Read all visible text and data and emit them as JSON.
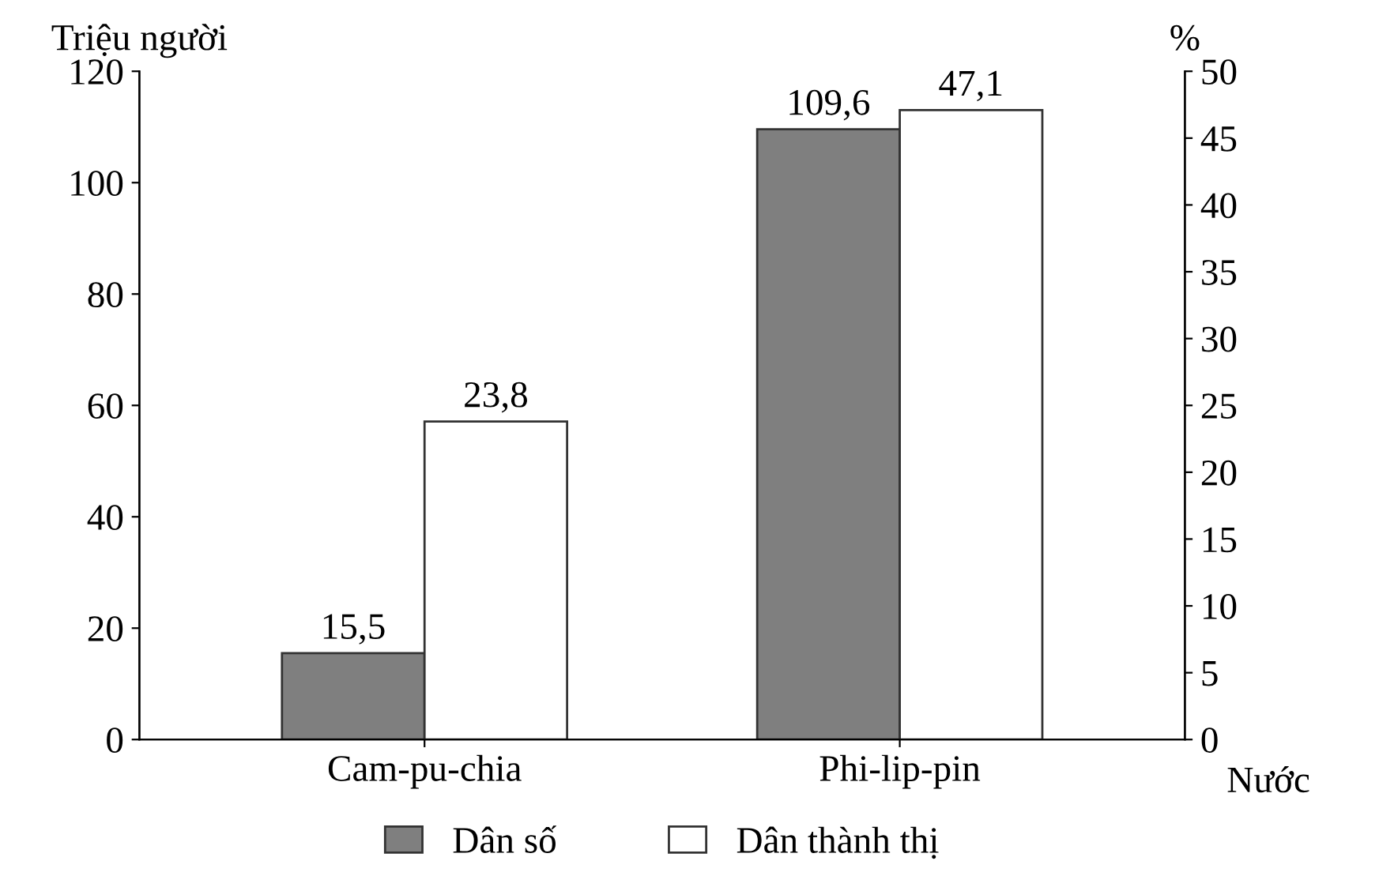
{
  "chart_data": {
    "type": "bar",
    "categories": [
      "Cam-pu-chia",
      "Phi-lip-pin"
    ],
    "series": [
      {
        "name": "Dân số",
        "color": "#7f7f7f",
        "values": [
          15.5,
          109.6
        ],
        "value_labels": [
          "15,5",
          "109,6"
        ]
      },
      {
        "name": "Dân thành thị",
        "color": "#ffffff",
        "values": [
          23.8,
          47.1
        ],
        "value_labels": [
          "23,8",
          "47,1"
        ],
        "axis": "y2"
      }
    ],
    "ylabel": "Triệu người",
    "y2label": "%",
    "xlabel": "Nước",
    "ylim": [
      0,
      120
    ],
    "yticks": [
      0,
      20,
      40,
      60,
      80,
      100,
      120
    ],
    "y2lim": [
      0,
      50
    ],
    "y2ticks": [
      0,
      5,
      10,
      15,
      20,
      25,
      30,
      35,
      40,
      45,
      50
    ],
    "grid": false,
    "legend": "bottom"
  }
}
